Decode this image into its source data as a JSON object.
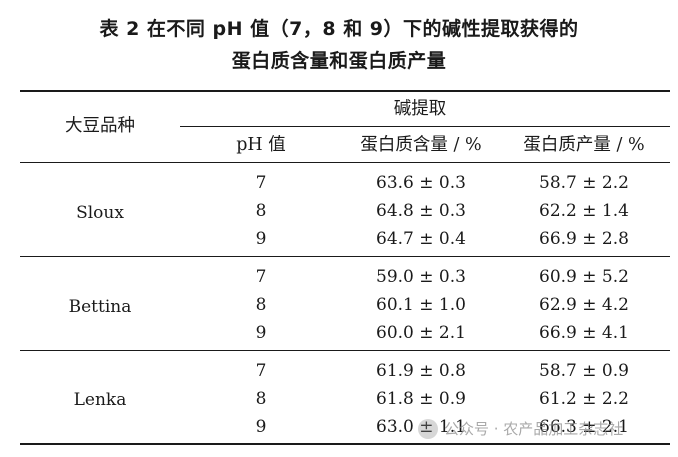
{
  "title": {
    "line1": "表 2   在不同 pH 值（7，8 和 9）下的碱性提取获得的",
    "line2": "蛋白质含量和蛋白质产量"
  },
  "header": {
    "variety": "大豆品种",
    "group": "碱提取",
    "ph": "pH 值",
    "content": "蛋白质含量 / %",
    "yield": "蛋白质产量 / %"
  },
  "groups": [
    {
      "variety": "Sloux",
      "rows": [
        {
          "ph": "7",
          "content": "63.6 ± 0.3",
          "yield": "58.7 ± 2.2"
        },
        {
          "ph": "8",
          "content": "64.8 ± 0.3",
          "yield": "62.2 ± 1.4"
        },
        {
          "ph": "9",
          "content": "64.7 ± 0.4",
          "yield": "66.9 ± 2.8"
        }
      ]
    },
    {
      "variety": "Bettina",
      "rows": [
        {
          "ph": "7",
          "content": "59.0 ± 0.3",
          "yield": "60.9 ± 5.2"
        },
        {
          "ph": "8",
          "content": "60.1 ± 1.0",
          "yield": "62.9 ± 4.2"
        },
        {
          "ph": "9",
          "content": "60.0 ± 2.1",
          "yield": "66.9 ± 4.1"
        }
      ]
    },
    {
      "variety": "Lenka",
      "rows": [
        {
          "ph": "7",
          "content": "61.9 ± 0.8",
          "yield": "58.7 ± 0.9"
        },
        {
          "ph": "8",
          "content": "61.8 ± 0.9",
          "yield": "61.2 ± 2.2"
        },
        {
          "ph": "9",
          "content": "63.0 ± 1.1",
          "yield": "66.3 ± 2.1"
        }
      ]
    }
  ],
  "watermark": "公众号 · 农产品加工杂志社"
}
